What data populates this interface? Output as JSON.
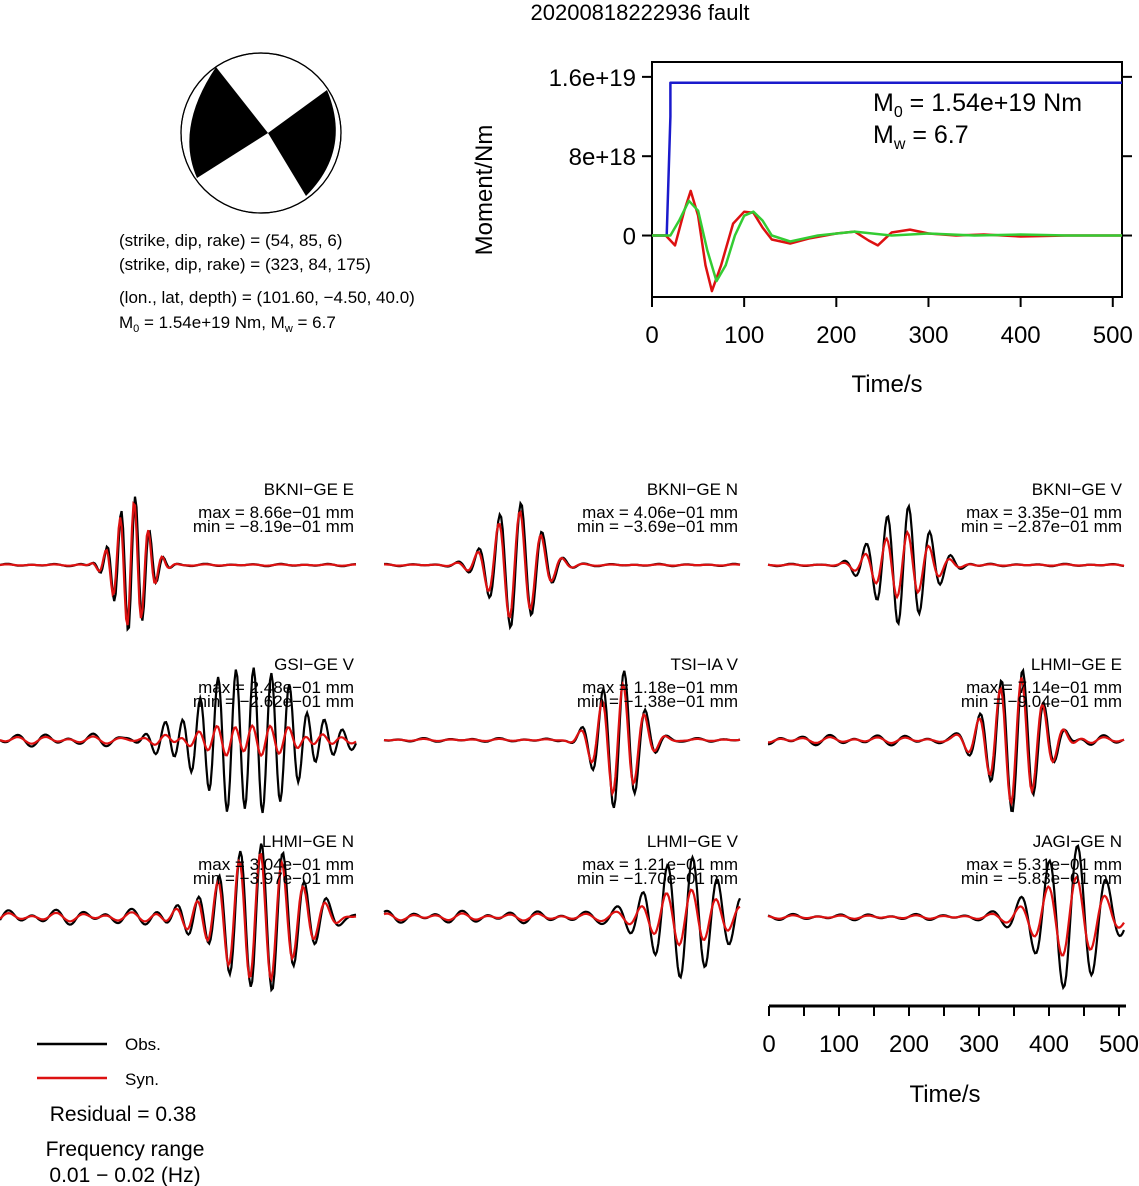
{
  "title": "20200818222936 fault",
  "mechanism": {
    "plane1": "(strike, dip, rake) = (54, 85, 6)",
    "plane2": "(strike, dip, rake) = (323, 84, 175)",
    "location": "(lon., lat, depth) = (101.60, −4.50, 40.0)",
    "moment_prefix": "M",
    "moment_sub": "0",
    "moment_mid": " = 1.54e+19 Nm, M",
    "moment_sub2": "w",
    "moment_end": " = 6.7"
  },
  "moment_panel": {
    "ylabel": "Moment/Nm",
    "xlabel": "Time/s",
    "annot_m0_prefix": "M",
    "annot_m0_sub": "0",
    "annot_m0_rest": " = 1.54e+19 Nm",
    "annot_mw_prefix": "M",
    "annot_mw_sub": "w",
    "annot_mw_rest": " = 6.7"
  },
  "wave_xaxis": {
    "label": "Time/s"
  },
  "legend": {
    "obs": "Obs.",
    "syn": "Syn."
  },
  "residual": "Residual = 0.38",
  "freq_title": "Frequency range",
  "freq_range": "0.01 − 0.02 (Hz)",
  "colors": {
    "obs": "#000000",
    "syn": "#dd1111",
    "stf": "#1a1acc",
    "stf_green": "#33cc33"
  },
  "chart_data": [
    {
      "type": "line",
      "title": "",
      "xlabel": "Time/s",
      "ylabel": "Moment/Nm",
      "xlim": [
        0,
        510
      ],
      "ylim": [
        -6.2e+18,
        1.75e+19
      ],
      "xticks": [
        0,
        100,
        200,
        300,
        400,
        500
      ],
      "xtick_labels": [
        "0",
        "100",
        "200",
        "300",
        "400",
        "500"
      ],
      "yticks": [
        0,
        8e+18,
        1.6e+19
      ],
      "ytick_labels": [
        "0",
        "8e+18",
        "1.6e+19"
      ],
      "series": [
        {
          "color": "#1a1acc",
          "x": [
            0,
            16,
            20,
            20,
            510
          ],
          "y": [
            0,
            0,
            1.2e+19,
            1.54e+19,
            1.54e+19
          ]
        },
        {
          "color": "#dd1111",
          "x": [
            0,
            15,
            25,
            35,
            42,
            50,
            58,
            65,
            75,
            88,
            100,
            110,
            120,
            130,
            140,
            150,
            170,
            200,
            220,
            235,
            245,
            260,
            280,
            300,
            330,
            360,
            400,
            450,
            510
          ],
          "y": [
            0,
            0,
            -1e+18,
            2.5e+18,
            4.5e+18,
            2e+18,
            -3e+18,
            -5.6e+18,
            -3e+18,
            1.2e+18,
            2.4e+18,
            2.3e+18,
            8e+17,
            -4e+17,
            -6e+17,
            -8e+17,
            -3e+17,
            2e+17,
            4e+17,
            -5e+17,
            -1e+18,
            3e+17,
            6e+17,
            2e+17,
            0,
            1e+17,
            -1e+17,
            0,
            0
          ]
        },
        {
          "color": "#33cc33",
          "x": [
            0,
            20,
            30,
            40,
            50,
            60,
            70,
            80,
            90,
            100,
            110,
            120,
            130,
            150,
            180,
            220,
            260,
            300,
            350,
            400,
            450,
            510
          ],
          "y": [
            0,
            0,
            1.6e+18,
            3.5e+18,
            2.5e+18,
            -1.5e+18,
            -4.6e+18,
            -3e+18,
            0,
            2e+18,
            2.4e+18,
            1.5e+18,
            0,
            -6e+17,
            0,
            4e+17,
            0,
            2e+17,
            0,
            1e+17,
            0,
            0
          ]
        }
      ]
    },
    {
      "type": "line",
      "xlabel": "Time/s",
      "xlim": [
        0,
        510
      ],
      "xticks": [
        0,
        100,
        200,
        300,
        400,
        500
      ],
      "xtick_labels": [
        "0",
        "100",
        "200",
        "300",
        "400",
        "500"
      ],
      "stations": [
        {
          "name": "BKNI−GE E",
          "max": "max = 8.66e−01 mm",
          "min": "min = −8.19e−01 mm"
        },
        {
          "name": "BKNI−GE N",
          "max": "max = 4.06e−01 mm",
          "min": "min = −3.69e−01 mm"
        },
        {
          "name": "BKNI−GE V",
          "max": "max = 3.35e−01 mm",
          "min": "min = −2.87e−01 mm"
        },
        {
          "name": "GSI−GE V",
          "max": "max = 2.48e−01 mm",
          "min": "min = −2.62e−01 mm"
        },
        {
          "name": "TSI−IA V",
          "max": "max = 1.18e−01 mm",
          "min": "min = −1.38e−01 mm"
        },
        {
          "name": "LHMI−GE E",
          "max": "max = 7.14e−01 mm",
          "min": "min = −9.04e−01 mm"
        },
        {
          "name": "LHMI−GE N",
          "max": "max = 3.04e−01 mm",
          "min": "min = −3.97e−01 mm"
        },
        {
          "name": "LHMI−GE V",
          "max": "max = 1.21e−01 mm",
          "min": "min = −1.70e−01 mm"
        },
        {
          "name": "JAGI−GE N",
          "max": "max = 5.31e−01 mm",
          "min": "min = −5.83e−01 mm"
        }
      ]
    }
  ]
}
